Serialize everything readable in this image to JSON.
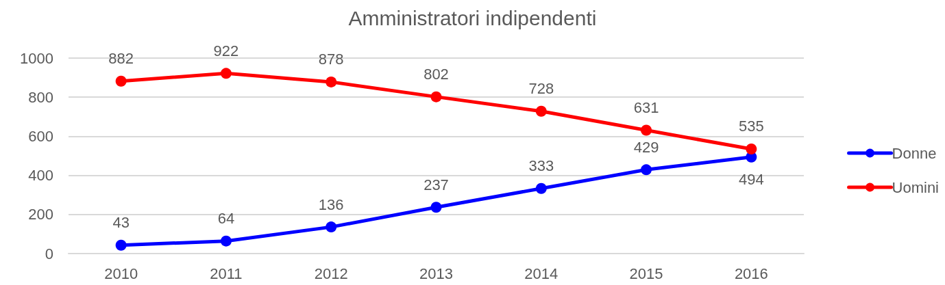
{
  "chart_data": {
    "type": "line",
    "title": "Amministratori indipendenti",
    "categories": [
      "2010",
      "2011",
      "2012",
      "2013",
      "2014",
      "2015",
      "2016"
    ],
    "series": [
      {
        "name": "Donne",
        "color": "#0000ff",
        "values": [
          43,
          64,
          136,
          237,
          333,
          429,
          494
        ]
      },
      {
        "name": "Uomini",
        "color": "#ff0000",
        "values": [
          882,
          922,
          878,
          802,
          728,
          631,
          535
        ]
      }
    ],
    "ylim": [
      0,
      1000
    ],
    "yticks": [
      0,
      200,
      400,
      600,
      800,
      1000
    ],
    "grid": "y",
    "legend": "right",
    "marker": "circle",
    "line_style": "solid",
    "data_labels": true
  }
}
